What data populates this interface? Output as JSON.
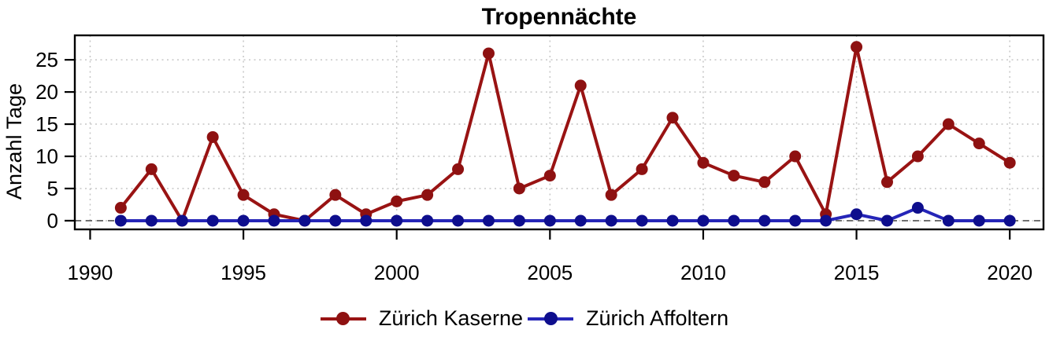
{
  "chart_data": {
    "type": "line",
    "title": "Tropennächte",
    "xlabel": "",
    "ylabel": "Anzahl Tage",
    "x": [
      1991,
      1992,
      1993,
      1994,
      1995,
      1996,
      1997,
      1998,
      1999,
      2000,
      2001,
      2002,
      2003,
      2004,
      2005,
      2006,
      2007,
      2008,
      2009,
      2010,
      2011,
      2012,
      2013,
      2014,
      2015,
      2016,
      2017,
      2018,
      2019,
      2020
    ],
    "series": [
      {
        "name": "Zürich Kaserne",
        "line_color": "#991313",
        "marker_color": "#8e1111",
        "values": [
          2,
          8,
          0,
          13,
          4,
          1,
          0,
          4,
          1,
          3,
          4,
          8,
          26,
          5,
          7,
          21,
          4,
          8,
          16,
          9,
          7,
          6,
          10,
          1,
          27,
          6,
          10,
          15,
          12,
          9
        ]
      },
      {
        "name": "Zürich Affoltern",
        "line_color": "#2525b8",
        "marker_color": "#0e0e8d",
        "values": [
          0,
          0,
          0,
          0,
          0,
          0,
          0,
          0,
          0,
          0,
          0,
          0,
          0,
          0,
          0,
          0,
          0,
          0,
          0,
          0,
          0,
          0,
          0,
          0,
          1,
          0,
          2,
          0,
          0,
          0
        ]
      }
    ],
    "x_ticks": [
      1990,
      1995,
      2000,
      2005,
      2010,
      2015,
      2020
    ],
    "y_ticks": [
      0,
      5,
      10,
      15,
      20,
      25
    ],
    "xlim": [
      1989.5,
      2021.1
    ],
    "ylim": [
      -1.35,
      28.8
    ],
    "grid": "dotted",
    "grid_color": "#c6c6c6",
    "zero_line": true,
    "zero_line_color": "#555555",
    "box_color": "#000000",
    "legend_position": "bottom"
  }
}
